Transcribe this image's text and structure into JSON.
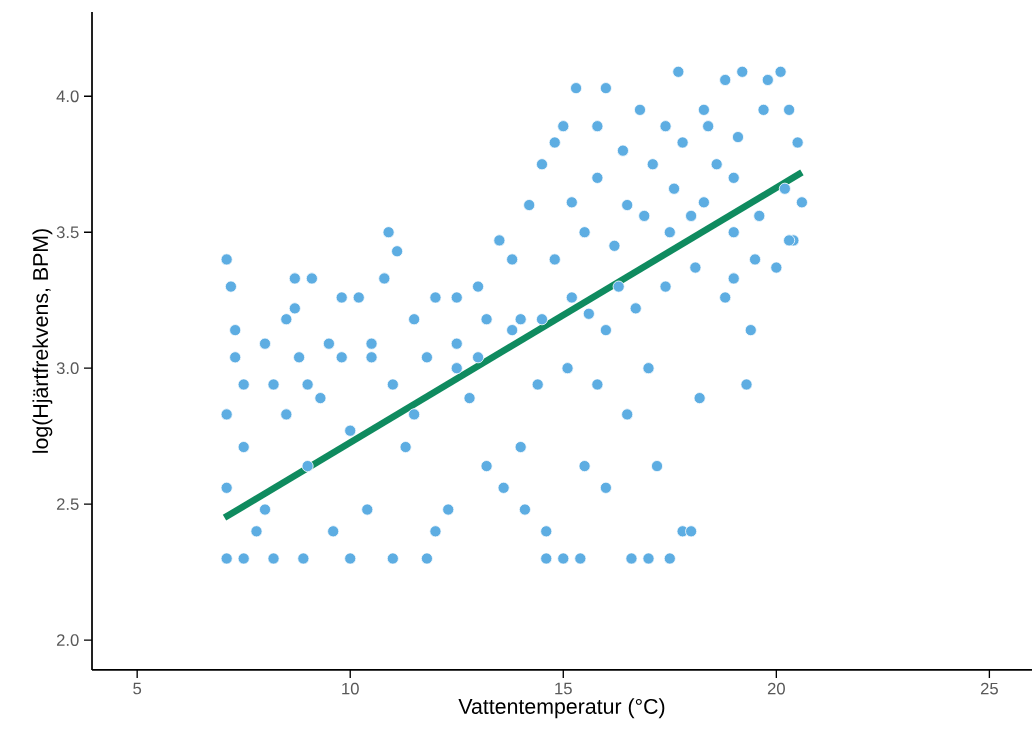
{
  "chart_data": {
    "type": "scatter",
    "xlabel": "Vattentemperatur (°C)",
    "ylabel": "log(Hjärtfrekvens, BPM)",
    "xlim": [
      3.94,
      26
    ],
    "ylim": [
      1.89,
      4.31
    ],
    "xticks": [
      5,
      10,
      15,
      20,
      25
    ],
    "yticks": [
      {
        "value": 2,
        "label": "2.0"
      },
      {
        "value": 2.5,
        "label": "2.5"
      },
      {
        "value": 3,
        "label": "3.0"
      },
      {
        "value": 3.5,
        "label": "3.5"
      },
      {
        "value": 4,
        "label": "4.0"
      }
    ],
    "series": [
      {
        "marker": "circle",
        "color": "#5dade2",
        "x": [
          15.2,
          15.8,
          16.4,
          17.1,
          17.8,
          18.4,
          19.1,
          19.7,
          20.2,
          14.8,
          15.5,
          16.2,
          16.9,
          17.6,
          18.3,
          19.0,
          19.6,
          20.4,
          14.5,
          15.2,
          16.0,
          16.7,
          17.4,
          18.1,
          18.8,
          19.4,
          13.0,
          13.8,
          14.4,
          15.1,
          15.8,
          16.5,
          11.0,
          11.8,
          12.5,
          13.2,
          9.0,
          9.8,
          10.5,
          7.5,
          8.2,
          8.8,
          7.1,
          7.1,
          7.1,
          7.1,
          7.2,
          7.3,
          7.3,
          7.5,
          7.5,
          7.8,
          8.0,
          8.0,
          8.2,
          8.5,
          8.7,
          8.7,
          8.9,
          9.0,
          9.1,
          9.3,
          9.5,
          9.6,
          9.8,
          10.0,
          10.0,
          10.2,
          10.4,
          10.5,
          10.8,
          10.9,
          11.0,
          11.1,
          11.3,
          11.5,
          11.8,
          12.0,
          12.0,
          12.3,
          12.5,
          12.8,
          13.0,
          13.2,
          13.5,
          13.6,
          13.8,
          14.0,
          14.1,
          14.2,
          14.5,
          14.6,
          14.6,
          14.8,
          15.0,
          15.0,
          15.3,
          15.4,
          15.5,
          15.8,
          16.0,
          16.0,
          16.3,
          16.6,
          16.8,
          17.0,
          17.2,
          17.4,
          17.5,
          17.7,
          17.8,
          18.0,
          18.0,
          18.2,
          18.3,
          18.6,
          18.8,
          19.0,
          19.2,
          19.3,
          19.5,
          19.8,
          20.1,
          20.3,
          20.5,
          20.6,
          20.0,
          15.6,
          16.5,
          17.0,
          19.0,
          11.5,
          8.5,
          12.5,
          14.0,
          17.5,
          20.3
        ],
        "values": [
          3.61,
          3.7,
          3.8,
          3.75,
          3.83,
          3.89,
          3.85,
          3.95,
          3.66,
          3.4,
          3.5,
          3.45,
          3.56,
          3.66,
          3.61,
          3.5,
          3.56,
          3.47,
          3.18,
          3.26,
          3.14,
          3.22,
          3.3,
          3.37,
          3.26,
          3.14,
          3.04,
          3.14,
          2.94,
          3.0,
          2.94,
          2.83,
          2.94,
          3.04,
          3.09,
          3.18,
          2.94,
          3.04,
          3.09,
          2.94,
          2.94,
          3.04,
          2.3,
          2.56,
          2.83,
          3.4,
          3.3,
          3.14,
          3.04,
          2.3,
          2.71,
          2.4,
          3.09,
          2.48,
          2.3,
          3.18,
          3.33,
          3.22,
          2.3,
          2.64,
          3.33,
          2.89,
          3.09,
          2.4,
          3.26,
          2.3,
          2.77,
          3.26,
          2.48,
          3.04,
          3.33,
          3.5,
          2.3,
          3.43,
          2.71,
          3.18,
          2.3,
          2.4,
          3.26,
          2.48,
          3.26,
          2.89,
          3.3,
          2.64,
          3.47,
          2.56,
          3.4,
          3.18,
          2.48,
          3.6,
          3.75,
          2.3,
          2.4,
          3.83,
          2.3,
          3.89,
          4.03,
          2.3,
          2.64,
          3.89,
          4.03,
          2.56,
          3.3,
          2.3,
          3.95,
          2.3,
          2.64,
          3.89,
          2.3,
          4.09,
          2.4,
          2.4,
          3.56,
          2.89,
          3.95,
          3.75,
          4.06,
          3.33,
          4.09,
          2.94,
          3.4,
          4.06,
          4.09,
          3.47,
          3.83,
          3.61,
          3.37,
          3.2,
          3.6,
          3.0,
          3.7,
          2.83,
          2.83,
          3.0,
          2.71,
          3.5,
          3.95
        ]
      },
      {
        "type": "line",
        "color": "#0f8b5f",
        "x": [
          7.05,
          20.6
        ],
        "values": [
          2.45,
          3.72
        ]
      }
    ]
  }
}
